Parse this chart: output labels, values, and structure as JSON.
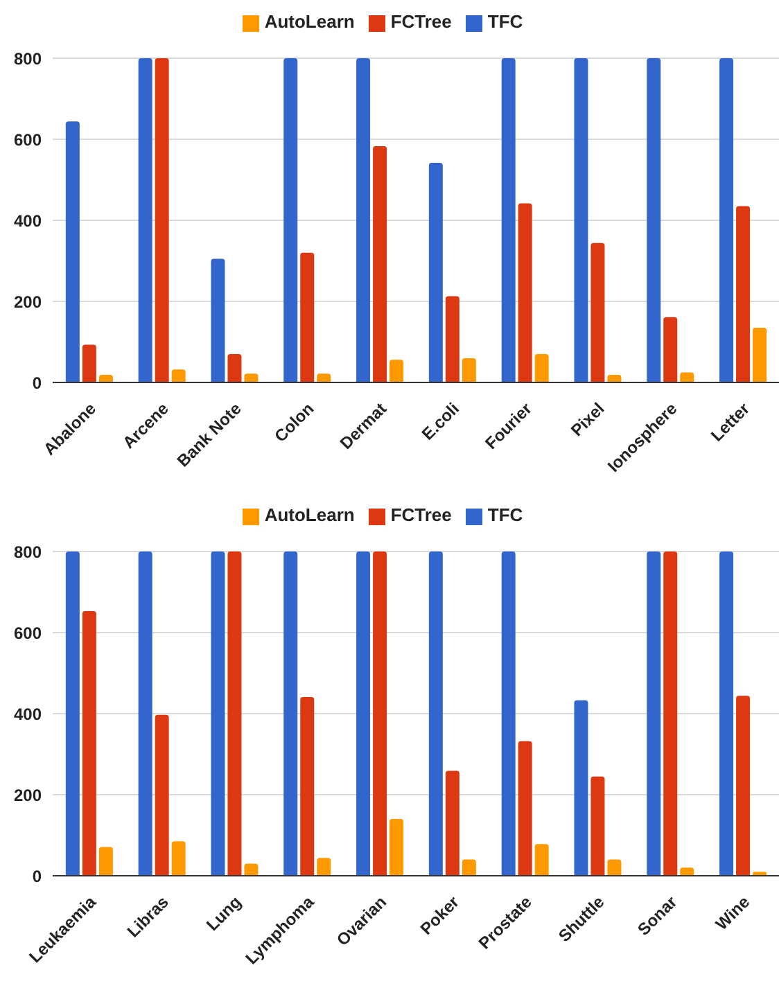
{
  "chart_data": [
    {
      "type": "bar",
      "categories": [
        "Abalone",
        "Arcene",
        "Bank Note",
        "Colon",
        "Dermat",
        "E.coli",
        "Fourier",
        "Pixel",
        "Ionosphere",
        "Letter"
      ],
      "series": [
        {
          "name": "TFC",
          "color": "#3366cc",
          "values": [
            644,
            800,
            305,
            800,
            800,
            542,
            800,
            800,
            800,
            800
          ]
        },
        {
          "name": "FCTree",
          "color": "#dc3912",
          "values": [
            93,
            800,
            70,
            320,
            583,
            213,
            442,
            344,
            161,
            435
          ]
        },
        {
          "name": "AutoLearn",
          "color": "#ff9900",
          "values": [
            19,
            32,
            22,
            22,
            56,
            60,
            70,
            19,
            25,
            135
          ]
        }
      ],
      "ylim": [
        0,
        800
      ],
      "yticks": [
        0,
        200,
        400,
        600,
        800
      ],
      "grid": "y",
      "legend": "top"
    },
    {
      "type": "bar",
      "categories": [
        "Leukaemia",
        "Libras",
        "Lung",
        "Lymphoma",
        "Ovarian",
        "Poker",
        "Prostate",
        "Shuttle",
        "Sonar",
        "Wine"
      ],
      "series": [
        {
          "name": "TFC",
          "color": "#3366cc",
          "values": [
            800,
            800,
            800,
            800,
            800,
            800,
            800,
            433,
            800,
            800
          ]
        },
        {
          "name": "FCTree",
          "color": "#dc3912",
          "values": [
            653,
            397,
            800,
            441,
            800,
            259,
            332,
            245,
            800,
            444
          ]
        },
        {
          "name": "AutoLearn",
          "color": "#ff9900",
          "values": [
            71,
            85,
            30,
            44,
            140,
            40,
            78,
            40,
            20,
            10
          ]
        }
      ],
      "ylim": [
        0,
        800
      ],
      "yticks": [
        0,
        200,
        400,
        600,
        800
      ],
      "grid": "y",
      "legend": "top"
    }
  ]
}
